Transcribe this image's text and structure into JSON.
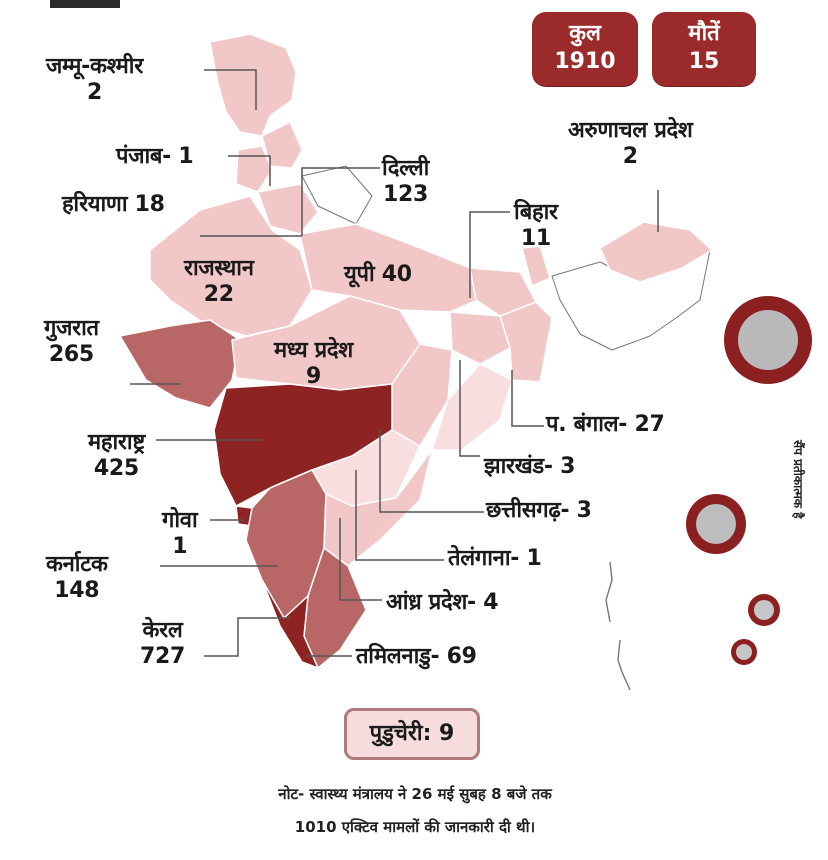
{
  "stats": {
    "total_label": "कुल",
    "total_value": "1910",
    "deaths_label": "मौतें",
    "deaths_value": "15"
  },
  "regions": {
    "jk": {
      "name": "जम्मू-कश्मीर",
      "value": "2"
    },
    "punjab": {
      "text": "पंजाब- 1"
    },
    "delhi": {
      "name": "दिल्ली",
      "value": "123"
    },
    "haryana": {
      "text": "हरियाणा 18"
    },
    "arunachal": {
      "name": "अरुणाचल प्रदेश",
      "value": "2"
    },
    "bihar": {
      "name": "बिहार",
      "value": "11"
    },
    "rajasthan": {
      "name": "राजस्थान",
      "value": "22"
    },
    "up": {
      "text": "यूपी 40"
    },
    "gujarat": {
      "name": "गुजरात",
      "value": "265"
    },
    "mp": {
      "name": "मध्य प्रदेश",
      "value": "9"
    },
    "wb": {
      "text": "प. बंगाल- 27"
    },
    "maharashtra": {
      "name": "महाराष्ट्र",
      "value": "425"
    },
    "jharkhand": {
      "text": "झारखंड- 3"
    },
    "chhattisgarh": {
      "text": "छत्तीसगढ़- 3"
    },
    "goa": {
      "name": "गोवा",
      "value": "1"
    },
    "telangana": {
      "text": "तेलंगाना- 1"
    },
    "karnataka": {
      "name": "कर्नाटक",
      "value": "148"
    },
    "andhra": {
      "text": "आंध्र प्रदेश- 4"
    },
    "kerala": {
      "name": "केरल",
      "value": "727"
    },
    "tamilnadu": {
      "text": "तमिलनाडु- 69"
    }
  },
  "puducherry": "पुडुचेरी: 9",
  "note_line1": "नोट- स्वास्थ्य मंत्रालय ने 26 मई सुबह 8 बजे तक",
  "note_line2": "1010 एक्टिव मामलों की जानकारी दी थी।",
  "side_note": "सैंप प्रतीकात्मक है",
  "colors": {
    "accent": "#9b2a2a",
    "light": "#f1c9c9",
    "mid": "#b86666",
    "dark": "#8e2323"
  }
}
